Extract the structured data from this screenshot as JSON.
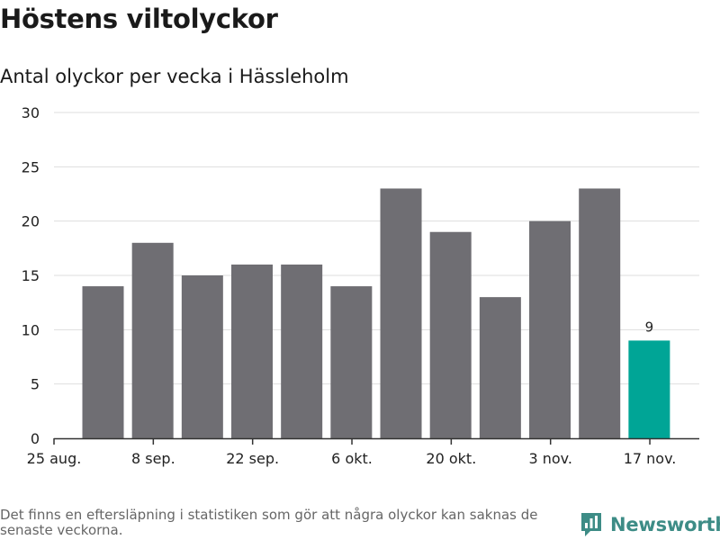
{
  "header": {
    "title": "Höstens viltolyckor",
    "subtitle": "Antal olyckor per vecka i Hässleholm"
  },
  "chart_data": {
    "type": "bar",
    "title": "Höstens viltolyckor",
    "subtitle": "Antal olyckor per vecka i Hässleholm",
    "xlabel": "",
    "ylabel": "",
    "ylim": [
      0,
      30
    ],
    "yticks": [
      0,
      5,
      10,
      15,
      20,
      25,
      30
    ],
    "grid": true,
    "x_tick_labels": [
      "25 aug.",
      "8 sep.",
      "22 sep.",
      "6 okt.",
      "20 okt.",
      "3 nov.",
      "17 nov."
    ],
    "values": [
      14,
      18,
      15,
      16,
      16,
      14,
      23,
      19,
      13,
      20,
      23,
      9
    ],
    "bar_colors": [
      "#6f6e73",
      "#6f6e73",
      "#6f6e73",
      "#6f6e73",
      "#6f6e73",
      "#6f6e73",
      "#6f6e73",
      "#6f6e73",
      "#6f6e73",
      "#6f6e73",
      "#6f6e73",
      "#00a596"
    ],
    "data_labels": [
      {
        "index": 11,
        "text": "9"
      }
    ]
  },
  "footer": {
    "note": "Det finns en eftersläpning i statistiken som gör att några olyckor kan saknas de senaste veckorna.",
    "brand": "Newsworthy",
    "brand_icon": "bar-chart-speech-bubble-icon",
    "brand_color": "#3d8c86"
  }
}
